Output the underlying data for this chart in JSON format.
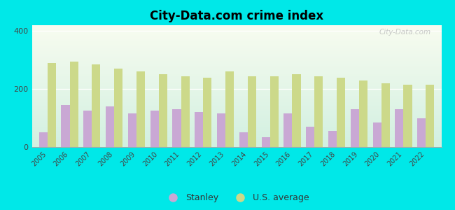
{
  "years": [
    2005,
    2006,
    2007,
    2008,
    2009,
    2010,
    2011,
    2012,
    2013,
    2014,
    2015,
    2016,
    2017,
    2018,
    2019,
    2020,
    2021,
    2022
  ],
  "stanley": [
    50,
    145,
    125,
    140,
    115,
    125,
    130,
    120,
    115,
    50,
    35,
    115,
    70,
    55,
    130,
    85,
    130,
    100
  ],
  "us_avg": [
    290,
    295,
    285,
    270,
    260,
    250,
    245,
    240,
    260,
    245,
    245,
    250,
    245,
    238,
    230,
    220,
    215,
    215
  ],
  "title": "City-Data.com crime index",
  "stanley_color": "#c9a8d4",
  "us_color": "#ccd98a",
  "background_color": "#00e8e8",
  "ylim": [
    0,
    420
  ],
  "yticks": [
    0,
    200,
    400
  ],
  "bar_width": 0.38,
  "legend_labels": [
    "Stanley",
    "U.S. average"
  ],
  "watermark": "City-Data.com"
}
